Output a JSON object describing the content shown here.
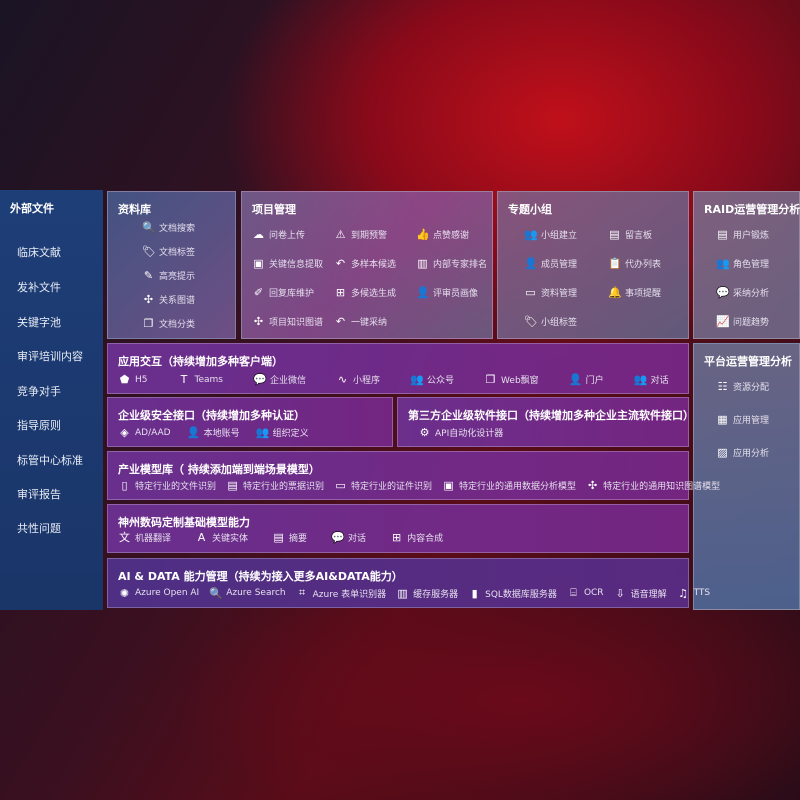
{
  "sidebar": {
    "title": "外部文件",
    "items": [
      "临床文献",
      "发补文件",
      "关键字池",
      "审评培训内容",
      "竞争对手",
      "指导原则",
      "标管中心标准",
      "审评报告",
      "共性问题"
    ]
  },
  "library": {
    "title": "资料库",
    "items": [
      {
        "icon": "doc-search-icon",
        "g": "🔍",
        "label": "文档搜索"
      },
      {
        "icon": "tag-icon",
        "g": "🏷",
        "label": "文档标签"
      },
      {
        "icon": "pen-icon",
        "g": "✎",
        "label": "高亮提示"
      },
      {
        "icon": "graph-icon",
        "g": "✣",
        "label": "关系图谱"
      },
      {
        "icon": "copy-icon",
        "g": "❐",
        "label": "文档分类"
      }
    ]
  },
  "project": {
    "title": "项目管理",
    "items": [
      {
        "icon": "cloud-upload-icon",
        "g": "☁",
        "label": "问卷上传"
      },
      {
        "icon": "alarm-icon",
        "g": "⚠",
        "label": "到期预警"
      },
      {
        "icon": "thumbs-up-icon",
        "g": "👍",
        "label": "点赞感谢"
      },
      {
        "icon": "window-icon",
        "g": "▣",
        "label": "关键信息提取"
      },
      {
        "icon": "reply-icon",
        "g": "↶",
        "label": "多样本候选"
      },
      {
        "icon": "ranking-icon",
        "g": "▥",
        "label": "内部专家排名"
      },
      {
        "icon": "edit-icon",
        "g": "✐",
        "label": "回复库维护"
      },
      {
        "icon": "puzzle-icon",
        "g": "⊞",
        "label": "多候选生成"
      },
      {
        "icon": "user-icon",
        "g": "👤",
        "label": "评审员画像"
      },
      {
        "icon": "knowledge-graph-icon",
        "g": "✣",
        "label": "项目知识图谱"
      },
      {
        "icon": "reply-icon",
        "g": "↶",
        "label": "一键采纳"
      }
    ]
  },
  "group": {
    "title": "专题小组",
    "items": [
      {
        "icon": "group-icon",
        "g": "👥",
        "label": "小组建立"
      },
      {
        "icon": "bbs-icon",
        "g": "▤",
        "label": "留言板"
      },
      {
        "icon": "add-user-icon",
        "g": "👤",
        "label": "成员管理"
      },
      {
        "icon": "clipboard-icon",
        "g": "📋",
        "label": "代办列表"
      },
      {
        "icon": "folder-icon",
        "g": "▭",
        "label": "资料管理"
      },
      {
        "icon": "bell-icon",
        "g": "🔔",
        "label": "事项提醒"
      },
      {
        "icon": "tag-icon",
        "g": "🏷",
        "label": "小组标签"
      }
    ]
  },
  "raid": {
    "title": "RAID运营管理分析",
    "items": [
      {
        "icon": "id-card-icon",
        "g": "▤",
        "label": "用户锻炼"
      },
      {
        "icon": "users-icon",
        "g": "👥",
        "label": "角色管理"
      },
      {
        "icon": "qa-icon",
        "g": "💬",
        "label": "采纳分析"
      },
      {
        "icon": "trend-icon",
        "g": "📈",
        "label": "问题趋势"
      }
    ]
  },
  "platform": {
    "title": "平台运营管理分析",
    "items": [
      {
        "icon": "list-icon",
        "g": "☷",
        "label": "资源分配"
      },
      {
        "icon": "apps-icon",
        "g": "▦",
        "label": "应用管理"
      },
      {
        "icon": "chart-icon",
        "g": "▨",
        "label": "应用分析"
      }
    ]
  },
  "app": {
    "title": "应用交互（持续增加多种客户端）",
    "items": [
      {
        "icon": "html5-icon",
        "g": "⬟",
        "label": "H5"
      },
      {
        "icon": "teams-icon",
        "g": "T",
        "label": "Teams"
      },
      {
        "icon": "wechat-icon",
        "g": "💬",
        "label": "企业微信"
      },
      {
        "icon": "miniprogram-icon",
        "g": "∿",
        "label": "小程序"
      },
      {
        "icon": "official-account-icon",
        "g": "👥",
        "label": "公众号"
      },
      {
        "icon": "web-window-icon",
        "g": "❐",
        "label": "Web飘窗"
      },
      {
        "icon": "portal-icon",
        "g": "👤",
        "label": "门户"
      },
      {
        "icon": "chat-users-icon",
        "g": "👥",
        "label": "对话"
      }
    ]
  },
  "security": {
    "title": "企业级安全接口（持续增加多种认证）",
    "items": [
      {
        "icon": "aad-icon",
        "g": "◈",
        "label": "AD/AAD"
      },
      {
        "icon": "local-account-icon",
        "g": "👤",
        "label": "本地账号"
      },
      {
        "icon": "org-icon",
        "g": "👥",
        "label": "组织定义"
      }
    ]
  },
  "thirdparty": {
    "title": "第三方企业级软件接口（持续增加多种企业主流软件接口）",
    "items": [
      {
        "icon": "gear-icon",
        "g": "⚙",
        "label": "API自动化设计器"
      }
    ]
  },
  "industry": {
    "title": "产业模型库（ 持续添加端到端场景模型）",
    "items": [
      {
        "icon": "file-icon",
        "g": "▯",
        "label": "特定行业的文件识别"
      },
      {
        "icon": "receipt-icon",
        "g": "▤",
        "label": "特定行业的票据识别"
      },
      {
        "icon": "id-card-icon",
        "g": "▭",
        "label": "特定行业的证件识别"
      },
      {
        "icon": "data-analysis-icon",
        "g": "▣",
        "label": "特定行业的通用数据分析模型"
      },
      {
        "icon": "knowledge-graph-icon",
        "g": "✣",
        "label": "特定行业的通用知识图谱模型"
      }
    ]
  },
  "base": {
    "title": "神州数码定制基础模型能力",
    "items": [
      {
        "icon": "translate-icon",
        "g": "文",
        "label": "机器翻译"
      },
      {
        "icon": "entity-icon",
        "g": "A",
        "label": "关键实体"
      },
      {
        "icon": "summary-icon",
        "g": "▤",
        "label": "摘要"
      },
      {
        "icon": "dialog-icon",
        "g": "💬",
        "label": "对话"
      },
      {
        "icon": "compose-icon",
        "g": "⊞",
        "label": "内容合成"
      }
    ]
  },
  "ai": {
    "title": "AI & DATA 能力管理（持续为接入更多AI&DATA能力）",
    "items": [
      {
        "icon": "openai-icon",
        "g": "✺",
        "label": "Azure Open AI"
      },
      {
        "icon": "search-doc-icon",
        "g": "🔍",
        "label": "Azure Search"
      },
      {
        "icon": "form-recognizer-icon",
        "g": "⌗",
        "label": "Azure 表单识别器"
      },
      {
        "icon": "cache-server-icon",
        "g": "▥",
        "label": "缓存服务器"
      },
      {
        "icon": "sql-icon",
        "g": "▮",
        "label": "SQL数据库服务器"
      },
      {
        "icon": "ocr-icon",
        "g": "⌸",
        "label": "OCR"
      },
      {
        "icon": "speech-icon",
        "g": "⇩",
        "label": "语音理解"
      },
      {
        "icon": "tts-icon",
        "g": "♫",
        "label": "TTS"
      }
    ]
  }
}
